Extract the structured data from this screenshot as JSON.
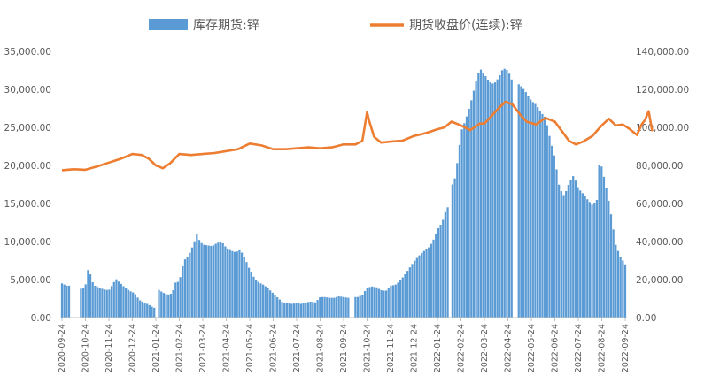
{
  "chart_data": {
    "type": "bar+line",
    "legend": [
      {
        "name": "库存期货:锌",
        "kind": "bar",
        "color": "#5B9BD5"
      },
      {
        "name": "期货收盘价(连续):锌",
        "kind": "line",
        "color": "#ED7D31"
      }
    ],
    "legend_position": "top",
    "left_axis": {
      "ticks": [
        "0.00",
        "5,000.00",
        "10,000.00",
        "15,000.00",
        "20,000.00",
        "25,000.00",
        "30,000.00",
        "35,000.00"
      ],
      "ylim": [
        0,
        35000
      ]
    },
    "right_axis": {
      "ticks": [
        "0.00",
        "20,000.00",
        "40,000.00",
        "60,000.00",
        "80,000.00",
        "100,000.00",
        "120,000.00",
        "140,000.00"
      ],
      "ylim": [
        0,
        140000
      ]
    },
    "x_tick_labels": [
      "2020-09-24",
      "2020-10-24",
      "2020-11-24",
      "2020-12-24",
      "2021-01-24",
      "2021-02-24",
      "2021-03-24",
      "2021-04-24",
      "2021-05-24",
      "2021-06-24",
      "2021-07-24",
      "2021-08-24",
      "2021-09-24",
      "2021-10-24",
      "2021-11-24",
      "2021-12-24",
      "2022-01-24",
      "2022-02-24",
      "2022-03-24",
      "2022-04-24",
      "2022-05-24",
      "2022-06-24",
      "2022-07-24",
      "2022-08-24",
      "2022-09-24"
    ],
    "inventory_series": {
      "name": "库存期货:锌",
      "points": [
        [
          0,
          4500
        ],
        [
          0.2,
          4200
        ],
        [
          0.5,
          0
        ],
        [
          0.7,
          0
        ],
        [
          0.9,
          3800
        ],
        [
          1,
          4200
        ],
        [
          1.1,
          6300
        ],
        [
          1.2,
          5800
        ],
        [
          1.3,
          4700
        ],
        [
          1.4,
          4200
        ],
        [
          1.6,
          3900
        ],
        [
          1.8,
          3700
        ],
        [
          2,
          3600
        ],
        [
          2.15,
          4300
        ],
        [
          2.3,
          5100
        ],
        [
          2.5,
          4500
        ],
        [
          2.7,
          3900
        ],
        [
          2.9,
          3500
        ],
        [
          3.1,
          3200
        ],
        [
          3.3,
          2300
        ],
        [
          3.5,
          2000
        ],
        [
          3.7,
          1700
        ],
        [
          3.9,
          1300
        ],
        [
          4,
          0
        ],
        [
          4.1,
          3700
        ],
        [
          4.3,
          3300
        ],
        [
          4.5,
          3000
        ],
        [
          4.7,
          3200
        ],
        [
          4.85,
          4700
        ],
        [
          5,
          4700
        ],
        [
          5.1,
          6200
        ],
        [
          5.2,
          7500
        ],
        [
          5.4,
          8200
        ],
        [
          5.6,
          9600
        ],
        [
          5.75,
          11000
        ],
        [
          5.85,
          10200
        ],
        [
          6,
          9600
        ],
        [
          6.2,
          9500
        ],
        [
          6.4,
          9400
        ],
        [
          6.6,
          9800
        ],
        [
          6.8,
          10000
        ],
        [
          7,
          9200
        ],
        [
          7.2,
          8800
        ],
        [
          7.4,
          8600
        ],
        [
          7.6,
          8900
        ],
        [
          7.8,
          7800
        ],
        [
          8,
          6300
        ],
        [
          8.2,
          5200
        ],
        [
          8.4,
          4600
        ],
        [
          8.6,
          4300
        ],
        [
          8.8,
          3800
        ],
        [
          9,
          3200
        ],
        [
          9.2,
          2600
        ],
        [
          9.4,
          2000
        ],
        [
          9.6,
          1900
        ],
        [
          9.8,
          1800
        ],
        [
          10,
          1900
        ],
        [
          10.2,
          1800
        ],
        [
          10.4,
          2000
        ],
        [
          10.6,
          2100
        ],
        [
          10.8,
          2000
        ],
        [
          11,
          2700
        ],
        [
          11.2,
          2700
        ],
        [
          11.4,
          2600
        ],
        [
          11.6,
          2600
        ],
        [
          11.8,
          2800
        ],
        [
          12,
          2700
        ],
        [
          12.2,
          2600
        ],
        [
          12.4,
          0
        ],
        [
          12.6,
          2700
        ],
        [
          12.8,
          3000
        ],
        [
          13,
          3900
        ],
        [
          13.2,
          4100
        ],
        [
          13.4,
          4000
        ],
        [
          13.6,
          3600
        ],
        [
          13.8,
          3500
        ],
        [
          14,
          4200
        ],
        [
          14.2,
          4300
        ],
        [
          14.4,
          4800
        ],
        [
          14.6,
          5600
        ],
        [
          14.8,
          6500
        ],
        [
          15,
          7400
        ],
        [
          15.2,
          8100
        ],
        [
          15.4,
          8700
        ],
        [
          15.6,
          9100
        ],
        [
          15.8,
          10000
        ],
        [
          16,
          11600
        ],
        [
          16.2,
          12500
        ],
        [
          16.4,
          14500
        ],
        [
          16.55,
          0
        ],
        [
          16.7,
          17500
        ],
        [
          16.9,
          21500
        ],
        [
          17,
          24400
        ],
        [
          17.2,
          26000
        ],
        [
          17.4,
          28000
        ],
        [
          17.6,
          30500
        ],
        [
          17.8,
          32800
        ],
        [
          18,
          32000
        ],
        [
          18.2,
          31000
        ],
        [
          18.4,
          30700
        ],
        [
          18.6,
          31500
        ],
        [
          18.8,
          32800
        ],
        [
          19,
          32500
        ],
        [
          19.2,
          31000
        ],
        [
          19.3,
          0
        ],
        [
          19.45,
          30700
        ],
        [
          19.6,
          30300
        ],
        [
          19.8,
          29500
        ],
        [
          20,
          28500
        ],
        [
          20.2,
          28000
        ],
        [
          20.4,
          27000
        ],
        [
          20.6,
          26300
        ],
        [
          20.8,
          23500
        ],
        [
          21,
          21000
        ],
        [
          21.2,
          17000
        ],
        [
          21.4,
          16000
        ],
        [
          21.6,
          17600
        ],
        [
          21.8,
          18700
        ],
        [
          22,
          17000
        ],
        [
          22.2,
          16300
        ],
        [
          22.4,
          15500
        ],
        [
          22.6,
          14800
        ],
        [
          22.8,
          15500
        ],
        [
          22.9,
          20500
        ],
        [
          23,
          19800
        ],
        [
          23.2,
          17000
        ],
        [
          23.4,
          13500
        ],
        [
          23.6,
          9500
        ],
        [
          23.8,
          8000
        ],
        [
          24,
          7000
        ],
        [
          24.2,
          6300
        ],
        [
          24.4,
          4900
        ],
        [
          24.6,
          3100
        ],
        [
          24.8,
          4200
        ],
        [
          25,
          11300
        ]
      ]
    },
    "price_series": {
      "name": "期货收盘价(连续):锌",
      "points": [
        [
          0,
          77500
        ],
        [
          0.5,
          78000
        ],
        [
          1,
          77700
        ],
        [
          1.5,
          79500
        ],
        [
          2,
          81500
        ],
        [
          2.5,
          83500
        ],
        [
          3,
          86000
        ],
        [
          3.4,
          85500
        ],
        [
          3.7,
          83500
        ],
        [
          4,
          80000
        ],
        [
          4.3,
          78500
        ],
        [
          4.6,
          81000
        ],
        [
          5,
          86000
        ],
        [
          5.5,
          85500
        ],
        [
          6,
          86000
        ],
        [
          6.5,
          86500
        ],
        [
          7,
          87500
        ],
        [
          7.5,
          88500
        ],
        [
          8,
          91500
        ],
        [
          8.5,
          90500
        ],
        [
          9,
          88500
        ],
        [
          9.5,
          88500
        ],
        [
          10,
          89000
        ],
        [
          10.5,
          89500
        ],
        [
          11,
          89000
        ],
        [
          11.5,
          89500
        ],
        [
          12,
          91000
        ],
        [
          12.5,
          91000
        ],
        [
          12.8,
          93000
        ],
        [
          13,
          108000
        ],
        [
          13.1,
          103000
        ],
        [
          13.3,
          95000
        ],
        [
          13.6,
          92000
        ],
        [
          14,
          92500
        ],
        [
          14.5,
          93000
        ],
        [
          15,
          95500
        ],
        [
          15.5,
          97000
        ],
        [
          16,
          99000
        ],
        [
          16.3,
          100000
        ],
        [
          16.6,
          103000
        ],
        [
          17,
          101000
        ],
        [
          17.4,
          98500
        ],
        [
          17.8,
          102000
        ],
        [
          18,
          102000
        ],
        [
          18.3,
          106000
        ],
        [
          18.6,
          110000
        ],
        [
          18.9,
          113500
        ],
        [
          19.2,
          112000
        ],
        [
          19.5,
          107000
        ],
        [
          19.8,
          103000
        ],
        [
          20.2,
          101500
        ],
        [
          20.6,
          105000
        ],
        [
          21,
          103000
        ],
        [
          21.3,
          98000
        ],
        [
          21.6,
          93000
        ],
        [
          21.9,
          91000
        ],
        [
          22.2,
          92500
        ],
        [
          22.6,
          95500
        ],
        [
          23,
          101000
        ],
        [
          23.3,
          104500
        ],
        [
          23.6,
          101000
        ],
        [
          23.9,
          101500
        ],
        [
          24.2,
          99000
        ],
        [
          24.5,
          96000
        ],
        [
          24.7,
          101500
        ],
        [
          24.85,
          104000
        ],
        [
          25,
          108500
        ],
        [
          25.15,
          98000
        ]
      ]
    }
  }
}
